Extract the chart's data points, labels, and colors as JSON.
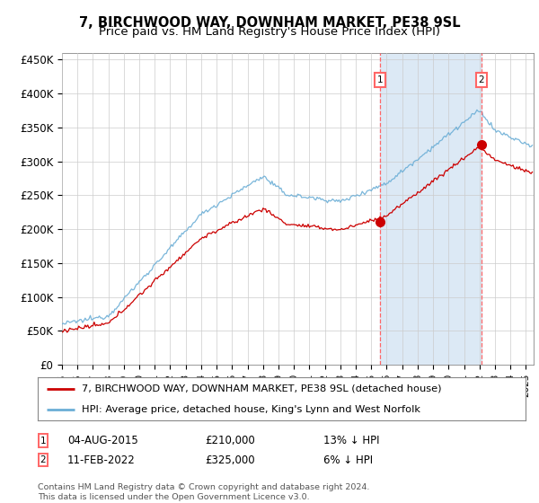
{
  "title": "7, BIRCHWOOD WAY, DOWNHAM MARKET, PE38 9SL",
  "subtitle": "Price paid vs. HM Land Registry's House Price Index (HPI)",
  "ylabel_ticks": [
    "£0",
    "£50K",
    "£100K",
    "£150K",
    "£200K",
    "£250K",
    "£300K",
    "£350K",
    "£400K",
    "£450K"
  ],
  "ytick_values": [
    0,
    50000,
    100000,
    150000,
    200000,
    250000,
    300000,
    350000,
    400000,
    450000
  ],
  "ylim": [
    0,
    460000
  ],
  "xlim_start": 1995.0,
  "xlim_end": 2025.5,
  "ann1_x": 2015.58,
  "ann1_price": 210000,
  "ann2_x": 2022.11,
  "ann2_price": 325000,
  "legend_line1": "7, BIRCHWOOD WAY, DOWNHAM MARKET, PE38 9SL (detached house)",
  "legend_line2": "HPI: Average price, detached house, King's Lynn and West Norfolk",
  "ann1_date": "04-AUG-2015",
  "ann1_text": "£210,000",
  "ann1_hpi": "13% ↓ HPI",
  "ann2_date": "11-FEB-2022",
  "ann2_text": "£325,000",
  "ann2_hpi": "6% ↓ HPI",
  "footer": "Contains HM Land Registry data © Crown copyright and database right 2024.\nThis data is licensed under the Open Government Licence v3.0.",
  "hpi_color": "#6baed6",
  "price_color": "#cc0000",
  "vline_color": "#ff6666",
  "shade_color": "#dce9f5",
  "bg_plot": "#ffffff",
  "bg_fig": "#ffffff",
  "grid_color": "#cccccc"
}
